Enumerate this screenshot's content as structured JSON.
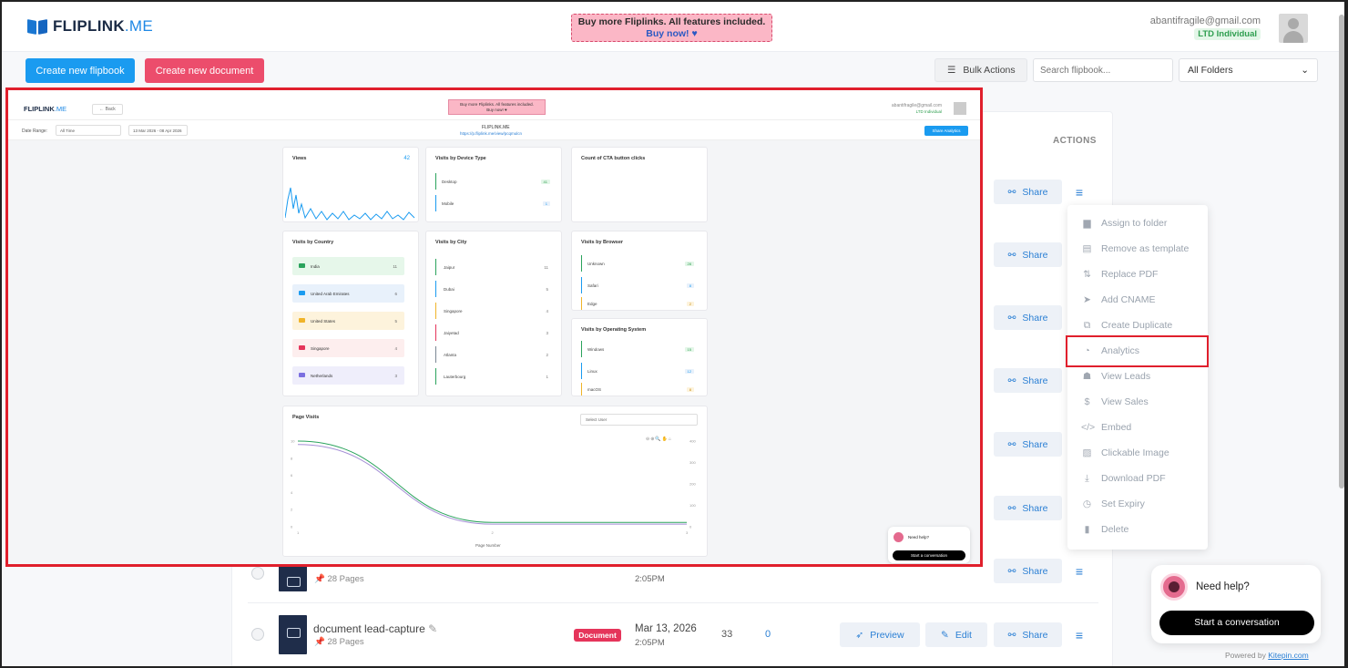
{
  "header": {
    "logo_main": "FLIPLINK",
    "logo_suffix": ".ME",
    "promo_line1": "Buy more Fliplinks. All features included.",
    "promo_line2": "Buy now! ♥",
    "user_email": "abantifragile@gmail.com",
    "user_plan": "LTD Individual"
  },
  "toolbar": {
    "create_flipbook": "Create new flipbook",
    "create_document": "Create new document",
    "bulk_actions": "Bulk Actions",
    "search_placeholder": "Search flipbook...",
    "folder_select": "All Folders"
  },
  "table": {
    "actions_header": "ACTIONS",
    "share_label": "Share",
    "preview_label": "Preview",
    "edit_label": "Edit",
    "rows": [
      {
        "pages": "28 Pages",
        "time": "2:05PM"
      },
      {
        "title": "document lead-capture",
        "badge": "Document",
        "date": "Mar 13, 2026",
        "time": "2:05PM",
        "pages": "28 Pages",
        "views": "33",
        "leads": "0"
      }
    ]
  },
  "dropdown": {
    "items": [
      {
        "label": "Assign to folder",
        "icon": "folder-icon"
      },
      {
        "label": "Remove as template",
        "icon": "template-icon"
      },
      {
        "label": "Replace PDF",
        "icon": "swap-icon"
      },
      {
        "label": "Add CNAME",
        "icon": "send-icon"
      },
      {
        "label": "Create Duplicate",
        "icon": "duplicate-icon"
      },
      {
        "label": "Analytics",
        "icon": "pie-chart-icon"
      },
      {
        "label": "View Leads",
        "icon": "leads-icon"
      },
      {
        "label": "View Sales",
        "icon": "dollar-icon"
      },
      {
        "label": "Embed",
        "icon": "code-icon"
      },
      {
        "label": "Clickable Image",
        "icon": "image-icon"
      },
      {
        "label": "Download PDF",
        "icon": "download-icon"
      },
      {
        "label": "Set Expiry",
        "icon": "clock-icon"
      },
      {
        "label": "Delete",
        "icon": "trash-icon"
      }
    ]
  },
  "chat": {
    "question": "Need help?",
    "button": "Start a conversation",
    "powered_prefix": "Powered by ",
    "powered_link": "Kitepin.com"
  },
  "embedded": {
    "back": "← Back",
    "promo_line1": "Buy more Fliplinks. All features included.",
    "promo_line2": "Buy now! ♥",
    "email": "abantifragile@gmail.com",
    "plan": "LTD Individual",
    "date_range_label": "Date Range:",
    "range_value": "All Time",
    "date_span": "13 Mar 2026 - 08 Apr 2026",
    "title": "FLIPLINK.ME",
    "url": "https://p.fliplink.me/view/pcqmulcn",
    "share_analytics": "Share Analytics",
    "views_title": "Views",
    "views_value": "42",
    "device_title": "Visits by Device Type",
    "devices": [
      {
        "name": "Desktop",
        "count": "41"
      },
      {
        "name": "Mobile",
        "count": "1"
      }
    ],
    "cta_title": "Count of CTA button clicks",
    "country_title": "Visits by Country",
    "countries": [
      {
        "name": "India",
        "count": "11",
        "bg": "#e6f7ea",
        "flag": "#2aa35c"
      },
      {
        "name": "United Arab Emirates",
        "count": "6",
        "bg": "#e8f1fb",
        "flag": "#1a9bf0"
      },
      {
        "name": "United States",
        "count": "5",
        "bg": "#fdf3dc",
        "flag": "#f0b429"
      },
      {
        "name": "Singapore",
        "count": "4",
        "bg": "#fdeeee",
        "flag": "#e5355b"
      },
      {
        "name": "Netherlands",
        "count": "3",
        "bg": "#efeefb",
        "flag": "#7b6fe0"
      }
    ],
    "city_title": "Visits by City",
    "cities": [
      {
        "name": "Jaipur",
        "count": "11",
        "color": "#2aa35c"
      },
      {
        "name": "Dubai",
        "count": "5",
        "color": "#1a9bf0"
      },
      {
        "name": "Singapore",
        "count": "4",
        "color": "#f0b429"
      },
      {
        "name": "Jaiyetad",
        "count": "3",
        "color": "#e5355b"
      },
      {
        "name": "Atlanta",
        "count": "2",
        "color": "#7b8794"
      },
      {
        "name": "Lauterbourg",
        "count": "1",
        "color": "#2aa35c"
      }
    ],
    "browser_title": "Visits by Browser",
    "browsers": [
      {
        "name": "Unknown",
        "count": "28"
      },
      {
        "name": "Safari",
        "count": "8"
      },
      {
        "name": "Edge",
        "count": "2"
      }
    ],
    "os_title": "Visits by Operating System",
    "os": [
      {
        "name": "Windows",
        "count": "15"
      },
      {
        "name": "Linux",
        "count": "12"
      },
      {
        "name": "macOS",
        "count": "8"
      }
    ],
    "page_visits_title": "Page Visits",
    "select_user": "Select User",
    "x_label": "Page Number",
    "chat_question": "Need help?",
    "chat_button": "Start a conversation"
  },
  "chart_data": {
    "type": "line",
    "title": "Page Visits",
    "xlabel": "Page Number",
    "x": [
      1,
      2,
      3
    ],
    "series": [
      {
        "values": [
          10,
          0.5,
          0.5
        ],
        "color": "#2aa35c"
      },
      {
        "values": [
          9.6,
          0.3,
          0.3
        ],
        "color": "#a58fd6"
      }
    ],
    "ylim": [
      0,
      10
    ],
    "left_ticks": [
      "10",
      "8",
      "6",
      "4",
      "2",
      "0"
    ],
    "right_ticks": [
      "400",
      "300",
      "200",
      "100",
      "0"
    ],
    "x_ticks": [
      "1",
      "2",
      "3"
    ]
  }
}
